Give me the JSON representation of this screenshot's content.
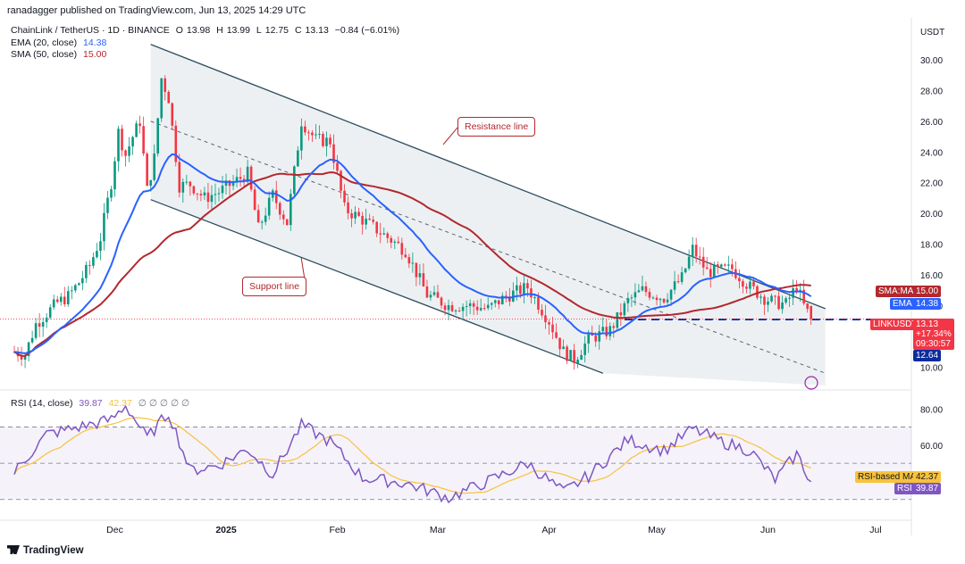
{
  "header": {
    "publisher": "ranadagger published on TradingView.com, Jun 13, 2025 14:29 UTC",
    "currency": "USDT"
  },
  "legend": {
    "symbol": "ChainLink / TetherUS · 1D · BINANCE",
    "ohlc": {
      "o_label": "O",
      "o": "13.98",
      "h_label": "H",
      "h": "13.99",
      "l_label": "L",
      "l": "12.75",
      "c_label": "C",
      "c": "13.13",
      "change": "−0.84 (−6.01%)"
    },
    "ema": {
      "label": "EMA (20, close)",
      "value": "14.38"
    },
    "sma": {
      "label": "SMA (50, close)",
      "value": "15.00"
    }
  },
  "annotations": {
    "resistance": "Resistance line",
    "support": "Support line"
  },
  "price_tags": {
    "sma_label": "SMA:MA",
    "sma_value": "15.00",
    "ema_label": "EMA",
    "ema_value": "14.38",
    "symbol_label": "LINKUSDT",
    "last_price": "13.13",
    "last_change": "+17.34%",
    "countdown": "09:30:57",
    "support_level": "12.64"
  },
  "rsi_legend": {
    "label": "RSI (14, close)",
    "rsi": "39.87",
    "ma": "42.37",
    "extras": "∅ ∅ ∅ ∅ ∅"
  },
  "rsi_tags": {
    "ma_label": "RSI-based MA",
    "ma_value": "42.37",
    "rsi_label": "RSI",
    "rsi_value": "39.87"
  },
  "footer": {
    "brand": "TradingView"
  },
  "colors": {
    "up": "#089981",
    "down": "#f23645",
    "ema": "#2962ff",
    "sma": "#b2282e",
    "rsi": "#7e57c2",
    "rsi_ma": "#f7c23c",
    "channel": "#2f4f5f",
    "support_dash": "#0c2c9c"
  },
  "chart_data": [
    {
      "type": "candlestick",
      "title": "ChainLink / TetherUS · 1D · BINANCE",
      "y_unit": "USDT",
      "ylim": [
        8.8,
        31.8
      ],
      "y_ticks": [
        "30.00",
        "28.00",
        "26.00",
        "24.00",
        "22.00",
        "20.00",
        "18.00",
        "16.00",
        "14.00",
        "12.00",
        "10.00"
      ],
      "x_ticks": [
        "Dec",
        "2025",
        "Feb",
        "Mar",
        "Apr",
        "May",
        "Jun",
        "Jul"
      ],
      "x_tick_dates": [
        "2024-12-01",
        "2025-01-01",
        "2025-02-01",
        "2025-03-01",
        "2025-04-01",
        "2025-05-01",
        "2025-06-01",
        "2025-07-01"
      ],
      "close_series": {
        "dates": [
          "2024-11-03",
          "2024-11-06",
          "2024-11-09",
          "2024-11-12",
          "2024-11-15",
          "2024-11-18",
          "2024-11-21",
          "2024-11-24",
          "2024-11-27",
          "2024-11-30",
          "2024-12-02",
          "2024-12-04",
          "2024-12-06",
          "2024-12-08",
          "2024-12-10",
          "2024-12-12",
          "2024-12-14",
          "2024-12-16",
          "2024-12-19",
          "2024-12-22",
          "2024-12-26",
          "2024-12-30",
          "2025-01-03",
          "2025-01-07",
          "2025-01-10",
          "2025-01-14",
          "2025-01-18",
          "2025-01-22",
          "2025-01-26",
          "2025-01-30",
          "2025-02-03",
          "2025-02-08",
          "2025-02-14",
          "2025-02-20",
          "2025-02-26",
          "2025-03-04",
          "2025-03-10",
          "2025-03-15",
          "2025-03-20",
          "2025-03-26",
          "2025-04-01",
          "2025-04-05",
          "2025-04-08",
          "2025-04-12",
          "2025-04-18",
          "2025-04-23",
          "2025-04-27",
          "2025-05-03",
          "2025-05-08",
          "2025-05-11",
          "2025-05-15",
          "2025-05-19",
          "2025-05-22",
          "2025-05-27",
          "2025-05-31",
          "2025-06-03",
          "2025-06-06",
          "2025-06-09",
          "2025-06-11",
          "2025-06-13"
        ],
        "close": [
          11.0,
          10.8,
          12.8,
          13.5,
          14.2,
          14.6,
          15.5,
          16.6,
          18.4,
          22.0,
          25.3,
          23.8,
          25.0,
          26.0,
          21.5,
          23.6,
          28.8,
          27.5,
          21.8,
          21.9,
          21.0,
          21.4,
          22.0,
          22.6,
          19.0,
          21.2,
          19.4,
          26.0,
          24.8,
          24.7,
          20.3,
          19.6,
          18.6,
          17.6,
          14.7,
          14.0,
          14.0,
          13.8,
          14.6,
          15.2,
          13.0,
          11.0,
          10.5,
          11.8,
          12.4,
          14.3,
          15.0,
          14.5,
          15.8,
          17.7,
          16.2,
          16.3,
          16.4,
          15.2,
          14.5,
          14.2,
          14.1,
          15.3,
          13.98,
          13.13
        ]
      },
      "last_ohlc": {
        "open": 13.98,
        "high": 13.99,
        "low": 12.75,
        "close": 13.13
      },
      "series": [
        {
          "name": "EMA (20, close)",
          "last": 14.38
        },
        {
          "name": "SMA (50, close)",
          "last": 15.0
        }
      ],
      "annotations": [
        {
          "label": "Resistance line",
          "from": {
            "date": "2024-12-11",
            "value": 31.0
          },
          "to": {
            "date": "2025-06-17",
            "value": 13.8
          }
        },
        {
          "label": "Support line",
          "from": {
            "date": "2024-12-11",
            "value": 20.9
          },
          "to": {
            "date": "2025-04-16",
            "value": 9.6
          }
        },
        {
          "label": "",
          "from": {
            "date": "2024-12-11",
            "value": 26.0
          },
          "to": {
            "date": "2025-06-17",
            "value": 9.6
          },
          "style": "dashed"
        },
        {
          "label": "",
          "value": 13.1,
          "from_date": "2025-04-22",
          "style": "horizontal-dashed"
        }
      ]
    },
    {
      "type": "line",
      "title": "RSI (14, close)",
      "ylim": [
        21,
        89
      ],
      "y_ticks": [
        "80.00",
        "60.00"
      ],
      "levels": [
        70,
        50,
        30
      ],
      "series": [
        {
          "name": "RSI",
          "last": 39.87,
          "dates": [
            "2024-11-03",
            "2024-11-12",
            "2024-11-21",
            "2024-11-30",
            "2024-12-04",
            "2024-12-10",
            "2024-12-16",
            "2024-12-22",
            "2024-12-30",
            "2025-01-07",
            "2025-01-14",
            "2025-01-22",
            "2025-01-30",
            "2025-02-08",
            "2025-02-20",
            "2025-03-04",
            "2025-03-15",
            "2025-03-26",
            "2025-04-05",
            "2025-04-12",
            "2025-04-23",
            "2025-05-03",
            "2025-05-11",
            "2025-05-19",
            "2025-05-27",
            "2025-06-03",
            "2025-06-09",
            "2025-06-13"
          ],
          "values": [
            45,
            66,
            70,
            74,
            82,
            64,
            78,
            46,
            49,
            58,
            44,
            71,
            62,
            42,
            39,
            31,
            40,
            50,
            34,
            43,
            63,
            57,
            69,
            62,
            57,
            41,
            55,
            39.87
          ]
        },
        {
          "name": "RSI-based MA",
          "last": 42.37
        }
      ]
    }
  ]
}
